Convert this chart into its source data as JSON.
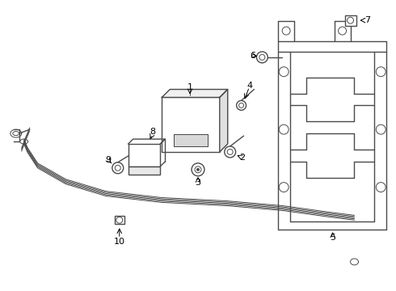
{
  "bg_color": "#ffffff",
  "line_color": "#4a4a4a",
  "text_color": "#000000",
  "lw": 1.0,
  "tlw": 0.7,
  "fs": 8,
  "fig_width": 4.9,
  "fig_height": 3.6,
  "dpi": 100
}
